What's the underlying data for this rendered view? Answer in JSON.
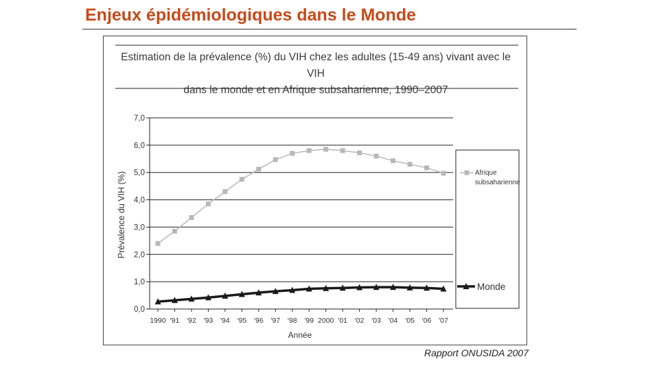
{
  "slide": {
    "title": "Enjeux épidémiologiques dans le Monde",
    "source": "Rapport ONUSIDA 2007"
  },
  "chart_data": {
    "type": "line",
    "title": "Estimation de la prévalence (%) du VIH chez les adultes (15-49 ans) vivant avec le VIH dans le monde et en Afrique subsaharienne, 1990–2007",
    "title_lines": [
      "Estimation de la prévalence (%) du VIH chez les adultes (15-49 ans) vivant avec le VIH",
      "dans le monde et en Afrique subsaharienne, 1990–2007"
    ],
    "xlabel": "Année",
    "ylabel": "Prévalence du VIH (%)",
    "ylim": [
      0,
      7
    ],
    "yticks": [
      "0,0",
      "1,0",
      "2,0",
      "3,0",
      "4,0",
      "5,0",
      "6,0",
      "7,0"
    ],
    "grid": true,
    "categories": [
      "1990",
      "'91",
      "'92",
      "'93",
      "'94",
      "'95",
      "'96",
      "'97",
      "'98",
      "'99",
      "2000",
      "'01",
      "'02",
      "'03",
      "'04",
      "'05",
      "'06",
      "'07"
    ],
    "series": [
      {
        "name": "Afrique subsaharienne",
        "legend_lines": [
          "Afrique",
          "subsaharienne"
        ],
        "color": "#b8b8b8",
        "marker": "square",
        "values": [
          2.4,
          2.85,
          3.35,
          3.85,
          4.3,
          4.75,
          5.12,
          5.47,
          5.7,
          5.8,
          5.85,
          5.8,
          5.72,
          5.6,
          5.43,
          5.3,
          5.17,
          4.97
        ]
      },
      {
        "name": "Monde",
        "legend_lines": [
          "Monde"
        ],
        "color": "#1a1a1a",
        "marker": "triangle",
        "values": [
          0.27,
          0.32,
          0.37,
          0.42,
          0.48,
          0.54,
          0.6,
          0.65,
          0.69,
          0.74,
          0.76,
          0.77,
          0.79,
          0.8,
          0.8,
          0.78,
          0.77,
          0.74
        ]
      }
    ],
    "legend_position": "right"
  }
}
